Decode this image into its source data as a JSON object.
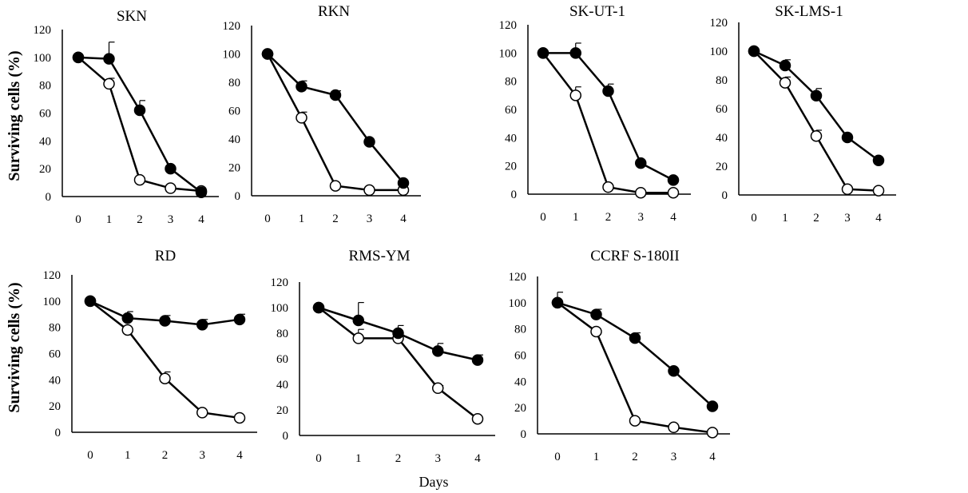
{
  "chart_data": [
    {
      "type": "line",
      "title": "SKN",
      "x": [
        0,
        1,
        2,
        3,
        4
      ],
      "ylim": [
        0,
        120
      ],
      "yticks": [
        0,
        20,
        40,
        60,
        80,
        100,
        120
      ],
      "series": [
        {
          "marker": "filled",
          "values": [
            100,
            99,
            62,
            20,
            3
          ],
          "errors": [
            0,
            12,
            7,
            0,
            0
          ]
        },
        {
          "marker": "open",
          "values": [
            100,
            81,
            12,
            6,
            4
          ],
          "errors": [
            0,
            4,
            0,
            0,
            0
          ]
        }
      ]
    },
    {
      "type": "line",
      "title": "RKN",
      "x": [
        0,
        1,
        2,
        3,
        4
      ],
      "ylim": [
        0,
        120
      ],
      "yticks": [
        0,
        20,
        40,
        60,
        80,
        100,
        120
      ],
      "series": [
        {
          "marker": "filled",
          "values": [
            100,
            77,
            71,
            38,
            9
          ],
          "errors": [
            0,
            4,
            3,
            0,
            0
          ]
        },
        {
          "marker": "open",
          "values": [
            100,
            55,
            7,
            4,
            4
          ],
          "errors": [
            0,
            4,
            0,
            0,
            0
          ]
        }
      ]
    },
    {
      "type": "line",
      "title": "SK-UT-1",
      "x": [
        0,
        1,
        2,
        3,
        4
      ],
      "ylim": [
        0,
        120
      ],
      "yticks": [
        0,
        20,
        40,
        60,
        80,
        100,
        120
      ],
      "series": [
        {
          "marker": "filled",
          "values": [
            100,
            100,
            73,
            22,
            10
          ],
          "errors": [
            0,
            7,
            5,
            0,
            0
          ]
        },
        {
          "marker": "open",
          "values": [
            100,
            70,
            5,
            1,
            1
          ],
          "errors": [
            0,
            6,
            0,
            0,
            0
          ]
        }
      ]
    },
    {
      "type": "line",
      "title": "SK-LMS-1",
      "x": [
        0,
        1,
        2,
        3,
        4
      ],
      "ylim": [
        0,
        120
      ],
      "yticks": [
        0,
        20,
        40,
        60,
        80,
        100,
        120
      ],
      "series": [
        {
          "marker": "filled",
          "values": [
            100,
            90,
            69,
            40,
            24
          ],
          "errors": [
            0,
            4,
            5,
            0,
            0
          ]
        },
        {
          "marker": "open",
          "values": [
            100,
            78,
            41,
            4,
            3
          ],
          "errors": [
            0,
            4,
            4,
            0,
            0
          ]
        }
      ]
    },
    {
      "type": "line",
      "title": "RD",
      "x": [
        0,
        1,
        2,
        3,
        4
      ],
      "ylim": [
        0,
        120
      ],
      "yticks": [
        0,
        20,
        40,
        60,
        80,
        100,
        120
      ],
      "series": [
        {
          "marker": "filled",
          "values": [
            100,
            87,
            85,
            82,
            86
          ],
          "errors": [
            0,
            5,
            4,
            4,
            4
          ]
        },
        {
          "marker": "open",
          "values": [
            100,
            78,
            41,
            15,
            11
          ],
          "errors": [
            0,
            0,
            5,
            0,
            0
          ]
        }
      ]
    },
    {
      "type": "line",
      "title": "RMS-YM",
      "x": [
        0,
        1,
        2,
        3,
        4
      ],
      "ylim": [
        0,
        120
      ],
      "yticks": [
        0,
        20,
        40,
        60,
        80,
        100,
        120
      ],
      "series": [
        {
          "marker": "filled",
          "values": [
            100,
            90,
            80,
            66,
            59
          ],
          "errors": [
            0,
            14,
            6,
            6,
            4
          ]
        },
        {
          "marker": "open",
          "values": [
            100,
            76,
            76,
            37,
            13
          ],
          "errors": [
            0,
            7,
            0,
            2,
            0
          ]
        }
      ]
    },
    {
      "type": "line",
      "title": "CCRF S-180II",
      "x": [
        0,
        1,
        2,
        3,
        4
      ],
      "ylim": [
        0,
        120
      ],
      "yticks": [
        0,
        20,
        40,
        60,
        80,
        100,
        120
      ],
      "series": [
        {
          "marker": "filled",
          "values": [
            100,
            91,
            73,
            48,
            21
          ],
          "errors": [
            0,
            4,
            4,
            0,
            0
          ]
        },
        {
          "marker": "open",
          "values": [
            100,
            78,
            10,
            5,
            1
          ],
          "errors": [
            8,
            0,
            0,
            0,
            0
          ]
        }
      ]
    }
  ],
  "labels": {
    "ylabel": "Surviving  cells (%)",
    "xlabel": "Days"
  },
  "colors": {
    "line": "#000000",
    "filled_marker": "#000000",
    "open_marker": "#ffffff"
  }
}
